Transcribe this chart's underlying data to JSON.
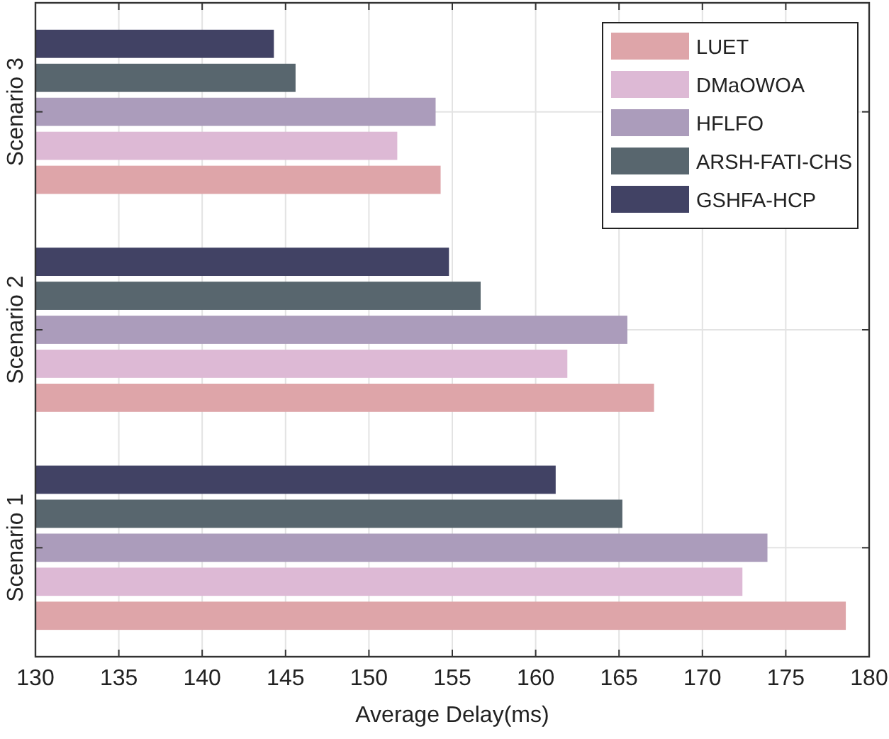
{
  "chart_data": {
    "type": "bar",
    "orientation": "horizontal",
    "xlabel": "Average Delay(ms)",
    "categories": [
      "Scenario 3",
      "Scenario 2",
      "Scenario 1"
    ],
    "series": [
      {
        "name": "LUET",
        "color": "#dea5a9",
        "values": [
          154.3,
          167.1,
          178.6
        ]
      },
      {
        "name": "DMaOWOA",
        "color": "#ddb9d5",
        "values": [
          151.7,
          161.9,
          172.4
        ]
      },
      {
        "name": "HFLFO",
        "color": "#ab9cbb",
        "values": [
          154.0,
          165.5,
          173.9
        ]
      },
      {
        "name": "ARSH-FATI-CHS",
        "color": "#58666e",
        "values": [
          145.6,
          156.7,
          165.2
        ]
      },
      {
        "name": "GSHFA-HCP",
        "color": "#414264",
        "values": [
          144.3,
          154.8,
          161.2
        ]
      }
    ],
    "xlim": [
      130,
      180
    ],
    "xticks": [
      130,
      135,
      140,
      145,
      150,
      155,
      160,
      165,
      170,
      175,
      180
    ],
    "grid": true,
    "legend": "top right"
  }
}
